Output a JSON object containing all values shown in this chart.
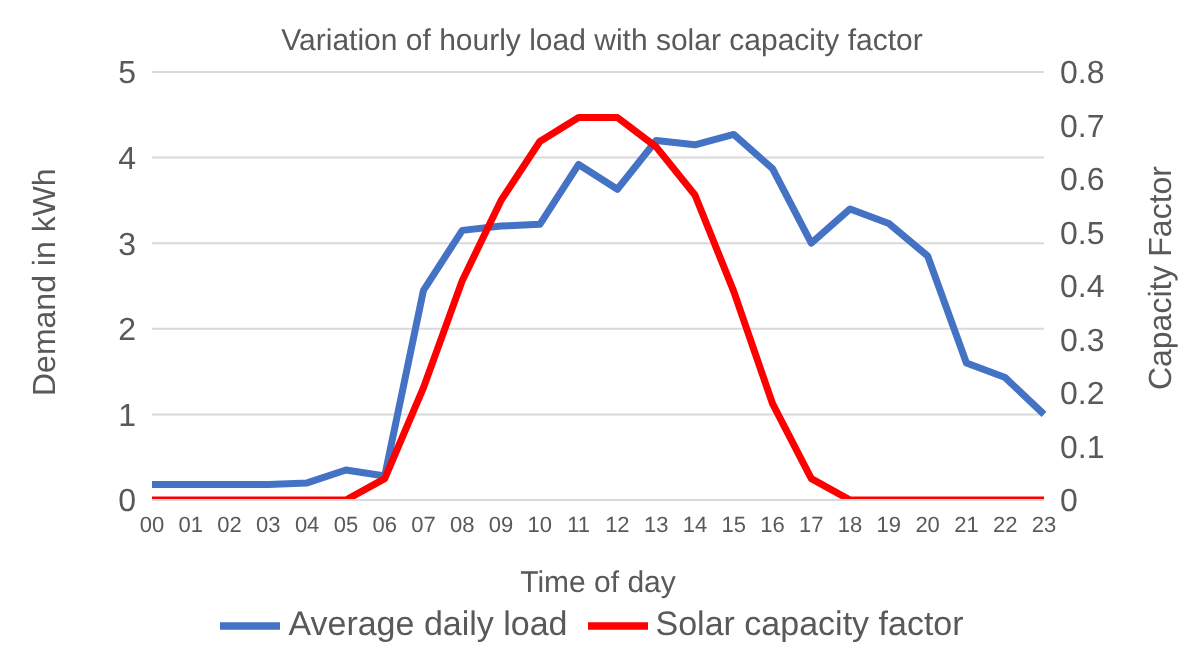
{
  "chart_data": {
    "type": "line",
    "title": "Variation of hourly load with solar capacity factor",
    "xlabel": "Time of day",
    "ylabel": "Demand in kWh",
    "y2label": "Capacity Factor",
    "categories": [
      "00",
      "01",
      "02",
      "03",
      "04",
      "05",
      "06",
      "07",
      "08",
      "09",
      "10",
      "11",
      "12",
      "13",
      "14",
      "15",
      "16",
      "17",
      "18",
      "19",
      "20",
      "21",
      "22",
      "23"
    ],
    "series": [
      {
        "name": "Average daily load",
        "color": "#4472c4",
        "values": [
          0.18,
          0.18,
          0.18,
          0.18,
          0.2,
          0.35,
          0.28,
          2.45,
          3.15,
          3.2,
          3.22,
          3.92,
          3.63,
          4.2,
          4.15,
          4.27,
          3.87,
          3.0,
          3.4,
          3.23,
          2.85,
          1.6,
          1.43,
          1.0
        ]
      },
      {
        "name": "Solar capacity factor",
        "color": "#ff0000",
        "axis": "y2",
        "values": [
          0,
          0,
          0,
          0,
          0,
          0,
          0.04,
          0.21,
          0.41,
          0.56,
          0.67,
          0.715,
          0.715,
          0.66,
          0.57,
          0.39,
          0.18,
          0.04,
          0,
          0,
          0,
          0,
          0,
          0
        ]
      }
    ],
    "ylim": [
      0,
      5
    ],
    "yticks": [
      0,
      1,
      2,
      3,
      4,
      5
    ],
    "y2lim": [
      0,
      0.8
    ],
    "y2ticks": [
      0,
      0.1,
      0.2,
      0.3,
      0.4,
      0.5,
      0.6,
      0.7,
      0.8
    ],
    "grid": "y",
    "legend": "bottom",
    "marker": "none",
    "line_style": "solid"
  }
}
